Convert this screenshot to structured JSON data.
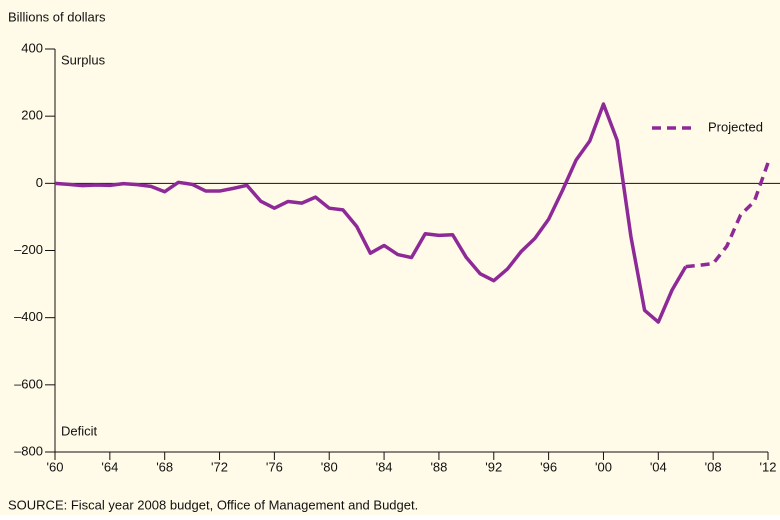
{
  "chart_data": {
    "type": "line",
    "axis_title": "Billions of dollars",
    "annotations": [
      "Surplus",
      "Deficit"
    ],
    "source": "SOURCE: Fiscal year 2008 budget, Office of Management and Budget.",
    "x": [
      1960,
      1961,
      1962,
      1963,
      1964,
      1965,
      1966,
      1967,
      1968,
      1969,
      1970,
      1971,
      1972,
      1973,
      1974,
      1975,
      1976,
      1977,
      1978,
      1979,
      1980,
      1981,
      1982,
      1983,
      1984,
      1985,
      1986,
      1987,
      1988,
      1989,
      1990,
      1991,
      1992,
      1993,
      1994,
      1995,
      1996,
      1997,
      1998,
      1999,
      2000,
      2001,
      2002,
      2003,
      2004,
      2005,
      2006,
      2007,
      2008,
      2009,
      2010,
      2011,
      2012
    ],
    "series": [
      {
        "color": "#8e2a97",
        "dashed": false,
        "values": [
          0,
          -3,
          -7,
          -5,
          -6,
          -1,
          -4,
          -9,
          -25,
          3,
          -3,
          -23,
          -23,
          -15,
          -6,
          -53,
          -74,
          -54,
          -59,
          -41,
          -74,
          -79,
          -128,
          -208,
          -185,
          -212,
          -221,
          -150,
          -155,
          -153,
          -221,
          -269,
          -290,
          -255,
          -203,
          -164,
          -107,
          -22,
          69,
          126,
          236,
          128,
          -158,
          -378,
          -413,
          -318,
          -248,
          null,
          null,
          null,
          null,
          null,
          null
        ]
      },
      {
        "name": "Projected",
        "color": "#8e2a97",
        "dashed": true,
        "values": [
          null,
          null,
          null,
          null,
          null,
          null,
          null,
          null,
          null,
          null,
          null,
          null,
          null,
          null,
          null,
          null,
          null,
          null,
          null,
          null,
          null,
          null,
          null,
          null,
          null,
          null,
          null,
          null,
          null,
          null,
          null,
          null,
          null,
          null,
          null,
          null,
          null,
          null,
          null,
          null,
          null,
          null,
          null,
          null,
          null,
          null,
          -248,
          -244,
          -239,
          -187,
          -94,
          -54,
          61
        ]
      }
    ],
    "xlim": [
      1960,
      2012
    ],
    "ylim": [
      -800,
      400
    ],
    "xticks": [
      {
        "value": 1960,
        "label": "'60"
      },
      {
        "value": 1964,
        "label": "'64"
      },
      {
        "value": 1968,
        "label": "'68"
      },
      {
        "value": 1972,
        "label": "'72"
      },
      {
        "value": 1976,
        "label": "'76"
      },
      {
        "value": 1980,
        "label": "'80"
      },
      {
        "value": 1984,
        "label": "'84"
      },
      {
        "value": 1988,
        "label": "'88"
      },
      {
        "value": 1992,
        "label": "'92"
      },
      {
        "value": 1996,
        "label": "'96"
      },
      {
        "value": 2000,
        "label": "'00"
      },
      {
        "value": 2004,
        "label": "'04"
      },
      {
        "value": 2008,
        "label": "'08"
      },
      {
        "value": 2012,
        "label": "'12"
      }
    ],
    "yticks": [
      400,
      200,
      0,
      {
        "value": -200,
        "label": "–200"
      },
      {
        "value": -400,
        "label": "–400"
      },
      {
        "value": -600,
        "label": "–600"
      },
      {
        "value": -800,
        "label": "–800"
      }
    ],
    "legend": "upper right",
    "background": "#fffbe8"
  }
}
